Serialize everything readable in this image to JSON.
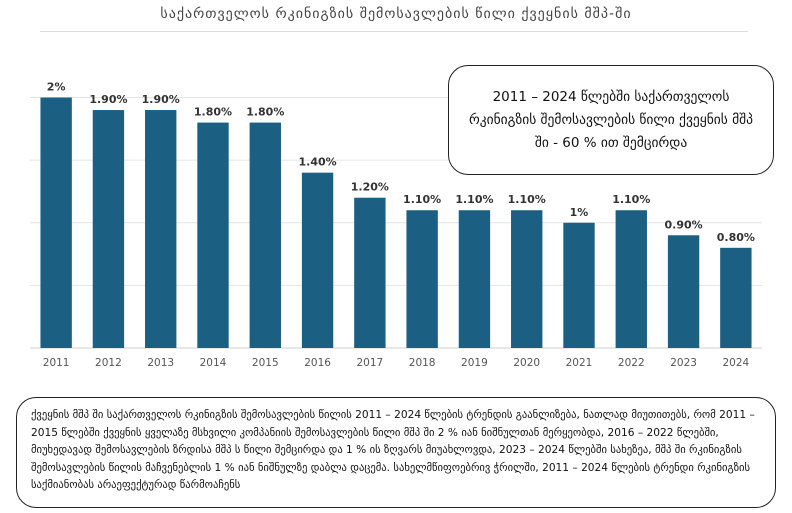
{
  "chart_data": {
    "type": "bar",
    "title": "საქართველოს რკინიგზის შემოსავლების წილი ქვეყნის მშპ-ში",
    "categories": [
      "2011",
      "2012",
      "2013",
      "2014",
      "2015",
      "2016",
      "2017",
      "2018",
      "2019",
      "2020",
      "2021",
      "2022",
      "2023",
      "2024"
    ],
    "values": [
      2.0,
      1.9,
      1.9,
      1.8,
      1.8,
      1.4,
      1.2,
      1.1,
      1.1,
      1.1,
      1.0,
      1.1,
      0.9,
      0.8
    ],
    "data_labels": [
      "2%",
      "1.90%",
      "1.90%",
      "1.80%",
      "1.80%",
      "1.40%",
      "1.20%",
      "1.10%",
      "1.10%",
      "1.10%",
      "1%",
      "1.10%",
      "0.90%",
      "0.80%"
    ],
    "ylim": [
      0,
      2.1
    ],
    "grid": true,
    "bar_color": "#1b5f82",
    "grid_color": "#e4e4e4",
    "xlabel": "",
    "ylabel": ""
  },
  "callout": {
    "text": "2011 – 2024 წლებში საქართველოს რკინიგზის შემოსავლების წილი ქვეყნის მშპ ში - 60 % ით შემცირდა"
  },
  "summary": {
    "text": "ქვეყნის მშპ ში საქართველოს რკინიგზის შემოსავლების წილის 2011 – 2024 წლების ტრენდის გაანლიზება, ნათლად მიუთითებს, რომ 2011 – 2015 წლებში ქვეყნის ყველაზე მსხვილი კომპანიის შემოსავლების წილი მშპ ში 2 % იან ნიშნულთან მერყეობდა, 2016 – 2022 წლებში, მიუხედავად შემოსავლების ზრდისა მშპ ს წილი შემცირდა და 1 % ის ზღვარს მიუახლოვდა, 2023 – 2024 წლებში სახეზეა, მშპ ში რკინიგზის შემოსავლების წილის მაჩვენებლის 1 % იან ნიშნულზე დაბლა დაცემა. სახელმწიფოებრივ ჭრილში, 2011 – 2024 წლების ტრენდი რკინიგზის საქმიანობას არაეფექტურად წარმოაჩენს"
  }
}
